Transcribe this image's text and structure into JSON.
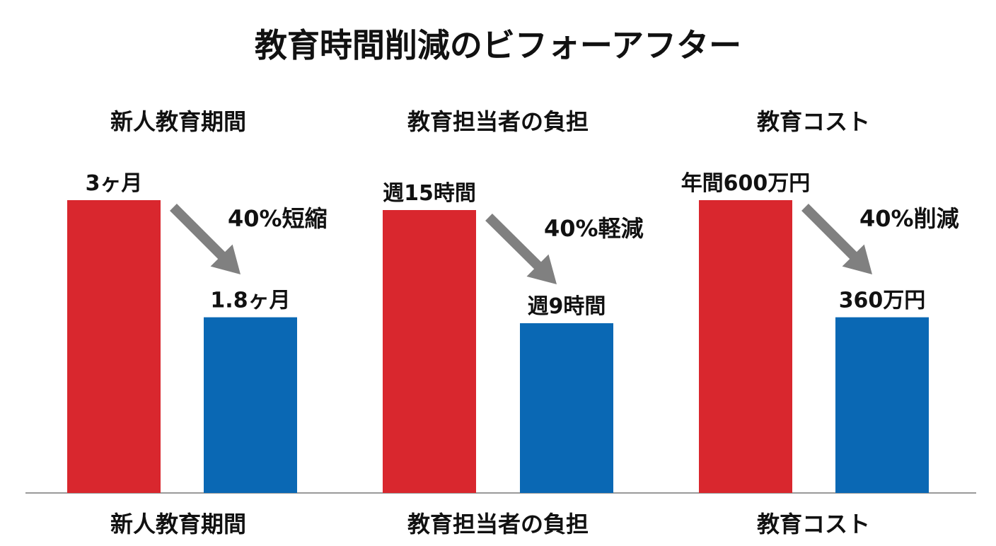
{
  "chart_data": {
    "type": "bar",
    "title": "教育時間削減のビフォーアフター",
    "colors": {
      "before": "#d9272e",
      "after": "#0a68b4",
      "arrow": "#808080",
      "axis": "#9a9a9a"
    },
    "grid": false,
    "groups": [
      {
        "heading": "新人教育期間",
        "category": "新人教育期間",
        "before": 3,
        "after": 1.8,
        "before_label": "3ヶ月",
        "after_label": "1.8ヶ月",
        "change_label": "40%短縮"
      },
      {
        "heading": "教育担当者の負担",
        "category": "教育担当者の負担",
        "before": 15,
        "after": 9,
        "before_label": "週15時間",
        "after_label": "週9時間",
        "change_label": "40%軽減"
      },
      {
        "heading": "教育コスト",
        "category": "教育コスト",
        "before": 600,
        "after": 360,
        "before_label": "年間600万円",
        "after_label": "360万円",
        "change_label": "40%削減"
      }
    ]
  }
}
